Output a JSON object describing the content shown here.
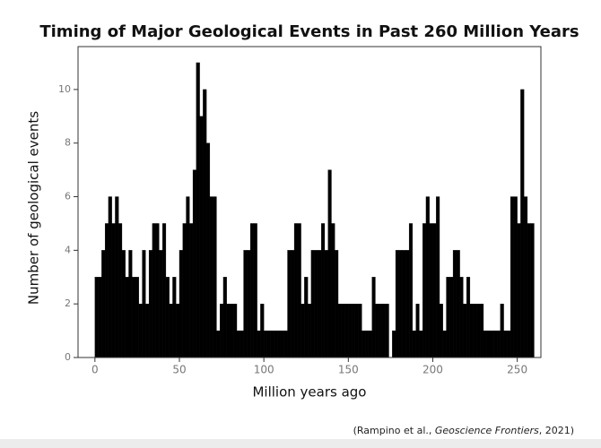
{
  "chart_data": {
    "type": "histogram",
    "title": "Timing of Major Geological Events in Past 260 Million Years",
    "x_label": "Million years ago",
    "y_label": "Number of geological events",
    "source": [
      "(Rampino et al., ",
      "Geoscience Frontiers",
      ", 2021)"
    ],
    "color": "#000000",
    "bins": [
      0,
      2,
      4,
      6,
      8,
      10,
      12,
      14,
      16,
      18,
      20,
      22,
      24,
      26,
      28,
      30,
      32,
      34,
      36,
      38,
      40,
      42,
      44,
      46,
      48,
      50,
      52,
      54,
      56,
      58,
      60,
      62,
      64,
      66,
      68,
      70,
      72,
      74,
      76,
      78,
      80,
      82,
      84,
      86,
      88,
      90,
      92,
      94,
      96,
      98,
      100,
      102,
      104,
      106,
      108,
      110,
      112,
      114,
      116,
      118,
      120,
      122,
      124,
      126,
      128,
      130,
      132,
      134,
      136,
      138,
      140,
      142,
      144,
      146,
      148,
      150,
      152,
      154,
      156,
      158,
      160,
      162,
      164,
      166,
      168,
      170,
      172,
      174,
      176,
      178,
      180,
      182,
      184,
      186,
      188,
      190,
      192,
      194,
      196,
      198,
      200,
      202,
      204,
      206,
      208,
      210,
      212,
      214,
      216,
      218,
      220,
      222,
      224,
      226,
      228,
      230,
      232,
      234,
      236,
      238,
      240,
      242,
      244,
      246,
      248,
      250,
      252,
      254,
      256,
      258,
      260
    ],
    "values": [
      3,
      3,
      4,
      5,
      6,
      5,
      6,
      5,
      4,
      3,
      4,
      3,
      3,
      2,
      4,
      2,
      4,
      5,
      5,
      4,
      5,
      3,
      2,
      3,
      2,
      4,
      5,
      6,
      5,
      7,
      11,
      9,
      10,
      8,
      6,
      6,
      1,
      2,
      3,
      2,
      2,
      2,
      1,
      1,
      4,
      4,
      5,
      5,
      1,
      2,
      1,
      1,
      1,
      1,
      1,
      1,
      1,
      4,
      4,
      5,
      5,
      2,
      3,
      2,
      4,
      4,
      4,
      5,
      4,
      7,
      5,
      4,
      2,
      2,
      2,
      2,
      2,
      2,
      2,
      1,
      1,
      1,
      3,
      2,
      2,
      2,
      2,
      0,
      1,
      4,
      4,
      4,
      4,
      5,
      1,
      2,
      1,
      5,
      6,
      5,
      5,
      6,
      2,
      1,
      3,
      3,
      4,
      4,
      3,
      2,
      3,
      2,
      2,
      2,
      2,
      1,
      1,
      1,
      1,
      1,
      2,
      1,
      1,
      6,
      6,
      5,
      10,
      6,
      5,
      5
    ],
    "xlim": [
      -10,
      264
    ],
    "ylim": [
      0,
      11.6
    ],
    "xticks": [
      0,
      50,
      100,
      150,
      200,
      250
    ],
    "yticks": [
      0,
      2,
      4,
      6,
      8,
      10
    ]
  }
}
